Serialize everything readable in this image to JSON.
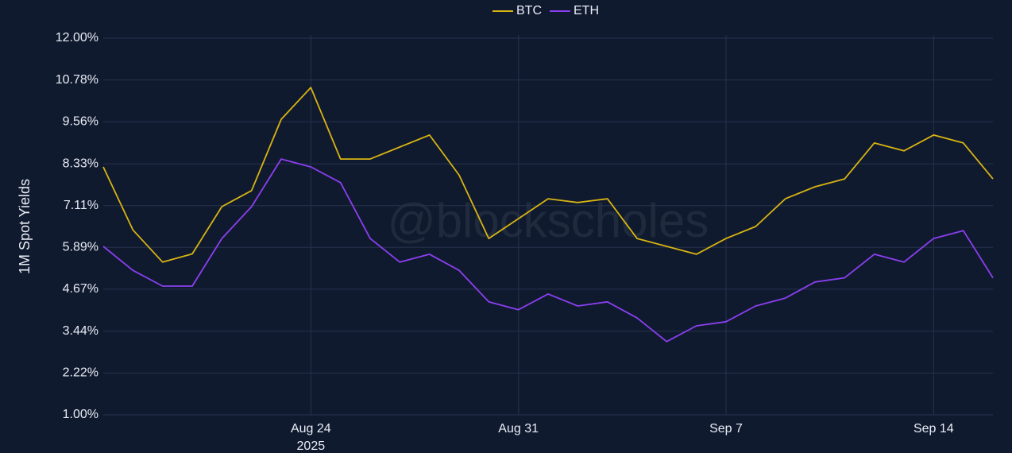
{
  "chart_data": {
    "type": "line",
    "watermark": "@blockscholes",
    "ylabel": "1M Spot Yields",
    "x": [
      "2025-08-17",
      "2025-08-18",
      "2025-08-19",
      "2025-08-20",
      "2025-08-21",
      "2025-08-22",
      "2025-08-23",
      "2025-08-24",
      "2025-08-25",
      "2025-08-26",
      "2025-08-27",
      "2025-08-28",
      "2025-08-29",
      "2025-08-30",
      "2025-08-31",
      "2025-09-01",
      "2025-09-02",
      "2025-09-03",
      "2025-09-04",
      "2025-09-05",
      "2025-09-06",
      "2025-09-07",
      "2025-09-08",
      "2025-09-09",
      "2025-09-10",
      "2025-09-11",
      "2025-09-12",
      "2025-09-13",
      "2025-09-14",
      "2025-09-15",
      "2025-09-16"
    ],
    "series": [
      {
        "name": "BTC",
        "color": "#d8b412",
        "values": [
          8.24,
          6.4,
          5.46,
          5.7,
          7.08,
          7.55,
          9.63,
          10.56,
          8.47,
          8.47,
          8.82,
          9.17,
          8.0,
          6.15,
          6.73,
          7.31,
          7.2,
          7.31,
          6.15,
          5.92,
          5.69,
          6.15,
          6.5,
          7.31,
          7.66,
          7.89,
          8.94,
          8.71,
          9.17,
          8.94,
          7.89
        ]
      },
      {
        "name": "ETH",
        "color": "#8b3ff0",
        "values": [
          5.92,
          5.22,
          4.76,
          4.76,
          6.15,
          7.08,
          8.47,
          8.24,
          7.78,
          6.15,
          5.46,
          5.69,
          5.22,
          4.3,
          4.07,
          4.53,
          4.18,
          4.3,
          3.83,
          3.14,
          3.6,
          3.72,
          4.18,
          4.41,
          4.88,
          5.0,
          5.69,
          5.46,
          6.15,
          6.38,
          5.0
        ]
      }
    ],
    "xlim": [
      "2025-08-17",
      "2025-09-16"
    ],
    "xticks": [
      {
        "value": "2025-08-24",
        "label": [
          "Aug 24",
          "2025"
        ]
      },
      {
        "value": "2025-08-31",
        "label": [
          "Aug 31"
        ]
      },
      {
        "value": "2025-09-07",
        "label": [
          "Sep 7"
        ]
      },
      {
        "value": "2025-09-14",
        "label": [
          "Sep 14"
        ]
      }
    ],
    "ylim": [
      1,
      12
    ],
    "yticks": [
      {
        "value": 1,
        "label": "1.00%"
      },
      {
        "value": 2.22,
        "label": "2.22%"
      },
      {
        "value": 3.44,
        "label": "3.44%"
      },
      {
        "value": 4.67,
        "label": "4.67%"
      },
      {
        "value": 5.89,
        "label": "5.89%"
      },
      {
        "value": 7.11,
        "label": "7.11%"
      },
      {
        "value": 8.33,
        "label": "8.33%"
      },
      {
        "value": 9.56,
        "label": "9.56%"
      },
      {
        "value": 10.78,
        "label": "10.78%"
      },
      {
        "value": 12,
        "label": "12.00%"
      }
    ],
    "grid": true,
    "legend": "top"
  }
}
